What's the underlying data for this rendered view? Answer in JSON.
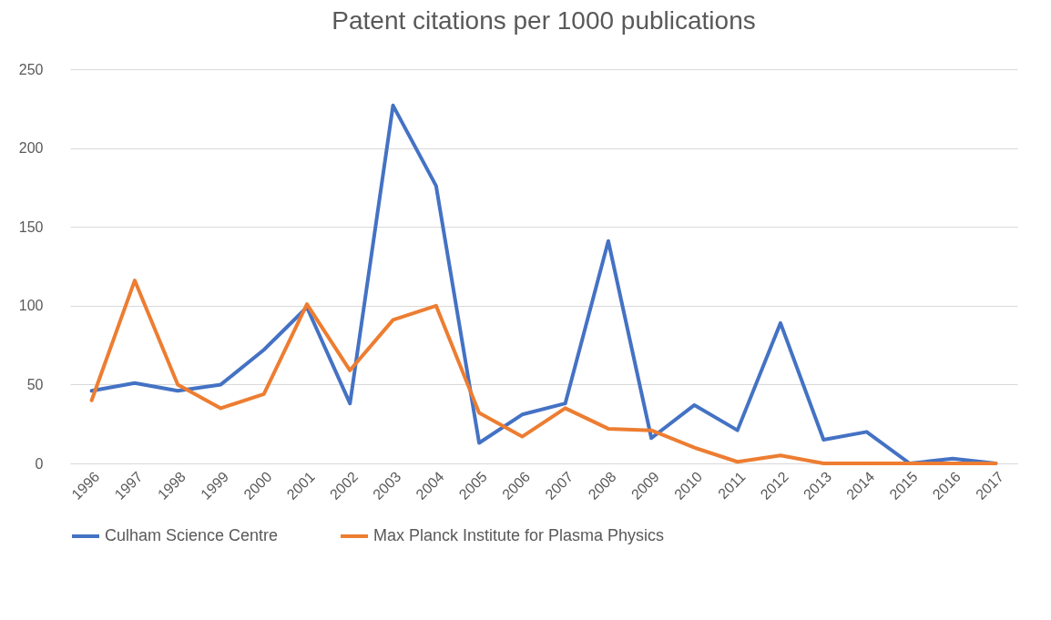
{
  "chart_data": {
    "type": "line",
    "title": "Patent citations  per  1000 publications",
    "categories": [
      "1996",
      "1997",
      "1998",
      "1999",
      "2000",
      "2001",
      "2002",
      "2003",
      "2004",
      "2005",
      "2006",
      "2007",
      "2008",
      "2009",
      "2010",
      "2011",
      "2012",
      "2013",
      "2014",
      "2015",
      "2016",
      "2017"
    ],
    "series": [
      {
        "name": "Culham Science Centre",
        "color": "#4472c4",
        "values": [
          46,
          51,
          46,
          50,
          72,
          99,
          38,
          227,
          176,
          13,
          31,
          38,
          141,
          16,
          37,
          21,
          89,
          15,
          20,
          0,
          3,
          0
        ]
      },
      {
        "name": "Max Planck Institute for Plasma Physics",
        "color": "#ed7d31",
        "values": [
          40,
          116,
          50,
          35,
          44,
          101,
          59,
          91,
          100,
          32,
          17,
          35,
          22,
          21,
          10,
          1,
          5,
          0,
          0,
          0,
          0,
          0
        ]
      }
    ],
    "ylim": [
      0,
      250
    ],
    "yticks": [
      0,
      50,
      100,
      150,
      200,
      250
    ],
    "grid": "y",
    "legend": "bottom"
  }
}
